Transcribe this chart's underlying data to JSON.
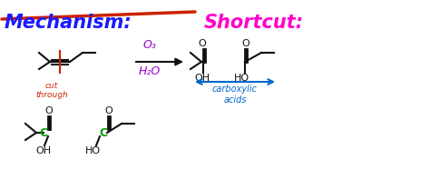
{
  "bg_color": "#ffffff",
  "mechanism_color": "#1a1aff",
  "shortcut_color": "#ff00cc",
  "strikethrough_color": "#cc2200",
  "red_color": "#cc2200",
  "purple_color": "#9900cc",
  "blue_color": "#0066cc",
  "green_color": "#009900",
  "black_color": "#111111",
  "title_mechanism": "Mechanism:",
  "title_shortcut": "Shortcut:",
  "reagent_top": "O₃",
  "reagent_bot": "H₂O",
  "label_cut": "cut\nthrough",
  "label_carboxylic": "carboxylic\nacids",
  "figsize": [
    4.74,
    1.98
  ],
  "dpi": 100
}
